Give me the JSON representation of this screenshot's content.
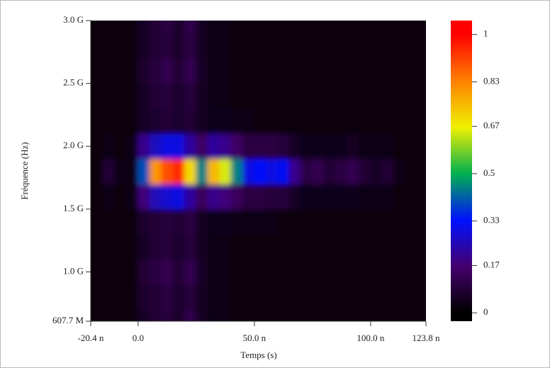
{
  "chart_data": {
    "type": "heatmap",
    "xlabel": "Temps (s)",
    "ylabel": "Fréquence (Hz)",
    "xlim": [
      -2.04e-08,
      1.238e-07
    ],
    "xticks": [
      {
        "value": -2.04e-08,
        "label": "-20.4 n"
      },
      {
        "value": 0,
        "label": "0.0"
      },
      {
        "value": 5e-08,
        "label": "50.0 n"
      },
      {
        "value": 1e-07,
        "label": "100.0 n"
      },
      {
        "value": 1.238e-07,
        "label": "123.8 n"
      }
    ],
    "ylim": [
      607700000,
      3000000000
    ],
    "yticks": [
      {
        "value": 607700000,
        "label": "607.7 M"
      },
      {
        "value": 1000000000,
        "label": "1.0 G"
      },
      {
        "value": 1500000000,
        "label": "1.5 G"
      },
      {
        "value": 2000000000,
        "label": "2.0 G"
      },
      {
        "value": 2500000000,
        "label": "2.5 G"
      },
      {
        "value": 3000000000,
        "label": "3.0 G"
      }
    ],
    "x": [
      -1.75e-08,
      -1.25e-08,
      -7.5e-09,
      -2.5e-09,
      2.5e-09,
      7.5e-09,
      1.25e-08,
      1.75e-08,
      2.25e-08,
      2.75e-08,
      3.25e-08,
      3.75e-08,
      4.25e-08,
      4.75e-08,
      5.25e-08,
      5.75e-08,
      6.25e-08,
      6.75e-08,
      7.25e-08,
      7.75e-08,
      8.25e-08,
      8.75e-08,
      9.25e-08,
      9.75e-08,
      1.025e-07,
      1.075e-07,
      1.125e-07,
      1.175e-07,
      1.225e-07
    ],
    "y": [
      600000000,
      800000000,
      1000000000,
      1200000000,
      1400000000,
      1600000000,
      1800000000,
      2000000000,
      2200000000,
      2400000000,
      2600000000,
      2800000000,
      3000000000
    ],
    "z": [
      [
        0.02,
        0.02,
        0.02,
        0.02,
        0.06,
        0.08,
        0.09,
        0.07,
        0.11,
        0.05,
        0.03,
        0.03,
        0.02,
        0.02,
        0.02,
        0.02,
        0.02,
        0.02,
        0.02,
        0.02,
        0.02,
        0.02,
        0.02,
        0.02,
        0.02,
        0.02,
        0.02,
        0.02,
        0.02
      ],
      [
        0.02,
        0.02,
        0.02,
        0.02,
        0.07,
        0.08,
        0.1,
        0.07,
        0.09,
        0.05,
        0.03,
        0.03,
        0.02,
        0.02,
        0.02,
        0.02,
        0.02,
        0.02,
        0.02,
        0.02,
        0.02,
        0.02,
        0.02,
        0.02,
        0.02,
        0.02,
        0.02,
        0.02,
        0.02
      ],
      [
        0.02,
        0.02,
        0.02,
        0.02,
        0.08,
        0.1,
        0.12,
        0.08,
        0.12,
        0.06,
        0.03,
        0.03,
        0.02,
        0.02,
        0.02,
        0.02,
        0.02,
        0.02,
        0.02,
        0.02,
        0.02,
        0.02,
        0.02,
        0.02,
        0.02,
        0.02,
        0.02,
        0.02,
        0.02
      ],
      [
        0.02,
        0.02,
        0.02,
        0.02,
        0.06,
        0.08,
        0.09,
        0.07,
        0.09,
        0.05,
        0.03,
        0.03,
        0.02,
        0.02,
        0.02,
        0.02,
        0.02,
        0.02,
        0.02,
        0.02,
        0.02,
        0.02,
        0.02,
        0.02,
        0.02,
        0.02,
        0.02,
        0.02,
        0.02
      ],
      [
        0.02,
        0.02,
        0.02,
        0.02,
        0.07,
        0.08,
        0.09,
        0.08,
        0.1,
        0.05,
        0.04,
        0.04,
        0.03,
        0.03,
        0.03,
        0.03,
        0.02,
        0.02,
        0.02,
        0.02,
        0.02,
        0.02,
        0.02,
        0.02,
        0.02,
        0.02,
        0.02,
        0.02,
        0.02
      ],
      [
        0.02,
        0.03,
        0.02,
        0.03,
        0.18,
        0.25,
        0.28,
        0.3,
        0.22,
        0.14,
        0.2,
        0.18,
        0.14,
        0.1,
        0.1,
        0.09,
        0.09,
        0.06,
        0.04,
        0.04,
        0.04,
        0.04,
        0.04,
        0.03,
        0.03,
        0.03,
        0.02,
        0.02,
        0.02
      ],
      [
        0.02,
        0.08,
        0.03,
        0.03,
        0.4,
        0.8,
        0.9,
        0.95,
        0.7,
        0.45,
        0.75,
        0.65,
        0.45,
        0.3,
        0.33,
        0.3,
        0.32,
        0.2,
        0.1,
        0.12,
        0.08,
        0.1,
        0.12,
        0.08,
        0.06,
        0.08,
        0.03,
        0.02,
        0.02
      ],
      [
        0.02,
        0.03,
        0.02,
        0.03,
        0.2,
        0.26,
        0.3,
        0.3,
        0.22,
        0.15,
        0.22,
        0.2,
        0.15,
        0.1,
        0.1,
        0.1,
        0.09,
        0.06,
        0.04,
        0.04,
        0.04,
        0.04,
        0.05,
        0.03,
        0.03,
        0.03,
        0.02,
        0.02,
        0.02
      ],
      [
        0.02,
        0.02,
        0.02,
        0.02,
        0.06,
        0.07,
        0.08,
        0.07,
        0.08,
        0.05,
        0.04,
        0.04,
        0.03,
        0.03,
        0.02,
        0.02,
        0.02,
        0.02,
        0.02,
        0.02,
        0.02,
        0.02,
        0.02,
        0.02,
        0.02,
        0.02,
        0.02,
        0.02,
        0.02
      ],
      [
        0.02,
        0.02,
        0.02,
        0.02,
        0.06,
        0.08,
        0.09,
        0.07,
        0.09,
        0.05,
        0.03,
        0.03,
        0.02,
        0.02,
        0.02,
        0.02,
        0.02,
        0.02,
        0.02,
        0.02,
        0.02,
        0.02,
        0.02,
        0.02,
        0.02,
        0.02,
        0.02,
        0.02,
        0.02
      ],
      [
        0.02,
        0.02,
        0.02,
        0.02,
        0.07,
        0.09,
        0.12,
        0.08,
        0.12,
        0.06,
        0.03,
        0.03,
        0.02,
        0.02,
        0.02,
        0.02,
        0.02,
        0.02,
        0.02,
        0.02,
        0.02,
        0.02,
        0.02,
        0.02,
        0.02,
        0.02,
        0.02,
        0.02,
        0.02
      ],
      [
        0.02,
        0.02,
        0.02,
        0.02,
        0.06,
        0.08,
        0.09,
        0.07,
        0.1,
        0.05,
        0.03,
        0.03,
        0.02,
        0.02,
        0.02,
        0.02,
        0.02,
        0.02,
        0.02,
        0.02,
        0.02,
        0.02,
        0.02,
        0.02,
        0.02,
        0.02,
        0.02,
        0.02,
        0.02
      ],
      [
        0.02,
        0.02,
        0.02,
        0.02,
        0.06,
        0.08,
        0.1,
        0.07,
        0.11,
        0.05,
        0.03,
        0.03,
        0.02,
        0.02,
        0.02,
        0.02,
        0.02,
        0.02,
        0.02,
        0.02,
        0.02,
        0.02,
        0.02,
        0.02,
        0.02,
        0.02,
        0.02,
        0.02,
        0.02
      ]
    ],
    "zlim": [
      -0.03,
      1.05
    ],
    "zticks": [
      0,
      0.17,
      0.33,
      0.5,
      0.67,
      0.83,
      1
    ],
    "colorscale": [
      "#000000",
      "#45006e",
      "#0010ff",
      "#00b050",
      "#f0f000",
      "#ff8000",
      "#ff0000"
    ]
  }
}
